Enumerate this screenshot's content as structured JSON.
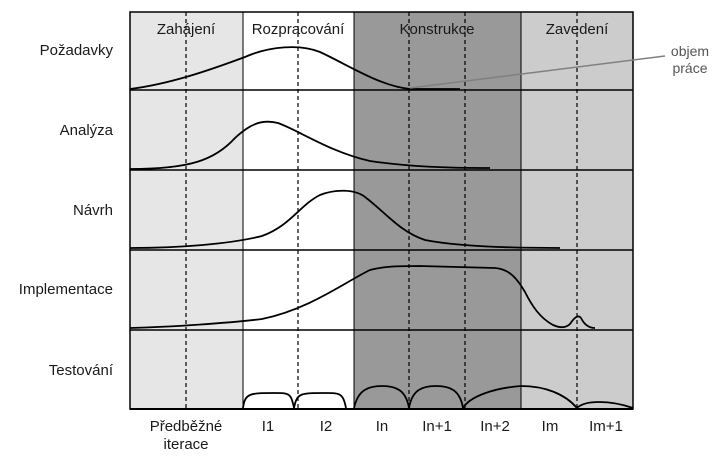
{
  "phases": [
    {
      "label": "Zahájení",
      "fill": "#e6e6e6"
    },
    {
      "label": "Rozpracování",
      "fill": "#ffffff"
    },
    {
      "label": "Konstrukce",
      "fill": "#999999"
    },
    {
      "label": "Zavedení",
      "fill": "#cccccc"
    }
  ],
  "disciplines": [
    "Požadavky",
    "Analýza",
    "Návrh",
    "Implementace",
    "Testování"
  ],
  "iterations": [
    {
      "line1": "Předběžné",
      "line2": "iterace"
    },
    {
      "line1": "I1"
    },
    {
      "line1": "I2"
    },
    {
      "line1": "In"
    },
    {
      "line1": "In+1"
    },
    {
      "line1": "In+2"
    },
    {
      "line1": "Im"
    },
    {
      "line1": "Im+1"
    }
  ],
  "annotation": {
    "line1": "objem",
    "line2": "práce"
  },
  "colors": {
    "grid": "#000000",
    "curve": "#000000",
    "annotation_line": "#808080"
  }
}
